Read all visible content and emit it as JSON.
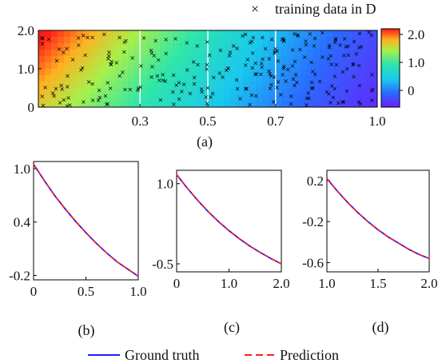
{
  "chart_data": [
    {
      "id": "a",
      "type": "heatmap",
      "caption": "(a)",
      "legend": "training data in D",
      "xlim": [
        0,
        1.0
      ],
      "ylim": [
        0,
        2.0
      ],
      "x_ticks": [
        "0.3",
        "0.5",
        "0.7",
        "1.0"
      ],
      "x_tick_values": [
        0.3,
        0.5,
        0.7,
        1.0
      ],
      "y_ticks": [
        "2.0",
        "1.0",
        "0"
      ],
      "y_tick_values": [
        2.0,
        1.0,
        0
      ],
      "slice_lines_x": [
        0.3,
        0.5,
        0.7
      ],
      "colorbar": {
        "min": -0.6,
        "max": 2.2,
        "ticks": [
          "2.0",
          "1.0",
          "0"
        ],
        "tick_values": [
          2.0,
          1.0,
          0
        ]
      },
      "scatter_points_count": 250
    },
    {
      "id": "b",
      "type": "line",
      "caption": "(b)",
      "xlim": [
        0,
        1.0
      ],
      "ylim": [
        -0.25,
        1.08
      ],
      "x_ticks": [
        "0",
        "0.5",
        "1.0"
      ],
      "x_tick_values": [
        0,
        0.5,
        1.0
      ],
      "y_ticks": [
        "1.0",
        "0.4",
        "-0.2"
      ],
      "y_tick_values": [
        1.0,
        0.4,
        -0.2
      ],
      "x": [
        0,
        0.1,
        0.2,
        0.3,
        0.4,
        0.5,
        0.6,
        0.7,
        0.8,
        0.9,
        1.0
      ],
      "series": [
        {
          "name": "Ground truth",
          "color": "#1f1fff",
          "style": "solid",
          "values": [
            1.05,
            0.87,
            0.7,
            0.55,
            0.41,
            0.28,
            0.16,
            0.05,
            -0.05,
            -0.13,
            -0.21
          ]
        },
        {
          "name": "Prediction",
          "color": "#ff1f1f",
          "style": "dashed",
          "values": [
            1.05,
            0.87,
            0.7,
            0.55,
            0.41,
            0.28,
            0.16,
            0.05,
            -0.05,
            -0.13,
            -0.21
          ]
        }
      ]
    },
    {
      "id": "c",
      "type": "line",
      "caption": "(c)",
      "xlim": [
        0,
        2.0
      ],
      "ylim": [
        -0.65,
        1.25
      ],
      "x_ticks": [
        "0",
        "1.0",
        "2.0"
      ],
      "x_tick_values": [
        0,
        1.0,
        2.0
      ],
      "y_ticks": [
        "1.0",
        "-0.5"
      ],
      "y_tick_values": [
        1.0,
        -0.5
      ],
      "x": [
        0,
        0.2,
        0.4,
        0.6,
        0.8,
        1.0,
        1.2,
        1.4,
        1.6,
        1.8,
        2.0
      ],
      "series": [
        {
          "name": "Ground truth",
          "color": "#1f1fff",
          "style": "solid",
          "values": [
            1.17,
            0.92,
            0.69,
            0.48,
            0.29,
            0.12,
            -0.03,
            -0.17,
            -0.29,
            -0.4,
            -0.5
          ]
        },
        {
          "name": "Prediction",
          "color": "#ff1f1f",
          "style": "dashed",
          "values": [
            1.17,
            0.92,
            0.69,
            0.48,
            0.29,
            0.12,
            -0.03,
            -0.17,
            -0.29,
            -0.4,
            -0.5
          ]
        }
      ]
    },
    {
      "id": "d",
      "type": "line",
      "caption": "(d)",
      "xlim": [
        1.0,
        2.0
      ],
      "ylim": [
        -0.69,
        0.3
      ],
      "x_ticks": [
        "1.0",
        "1.5",
        "2.0"
      ],
      "x_tick_values": [
        1.0,
        1.5,
        2.0
      ],
      "y_ticks": [
        "0.2",
        "-0.2",
        "-0.6"
      ],
      "y_tick_values": [
        0.2,
        -0.2,
        -0.6
      ],
      "x": [
        1.0,
        1.1,
        1.2,
        1.3,
        1.4,
        1.5,
        1.6,
        1.7,
        1.8,
        1.9,
        2.0
      ],
      "series": [
        {
          "name": "Ground truth",
          "color": "#1f1fff",
          "style": "solid",
          "values": [
            0.22,
            0.1,
            -0.01,
            -0.11,
            -0.2,
            -0.28,
            -0.35,
            -0.41,
            -0.47,
            -0.52,
            -0.56
          ]
        },
        {
          "name": "Prediction",
          "color": "#ff1f1f",
          "style": "dashed",
          "values": [
            0.22,
            0.1,
            -0.01,
            -0.11,
            -0.2,
            -0.28,
            -0.35,
            -0.41,
            -0.47,
            -0.52,
            -0.56
          ]
        }
      ]
    }
  ],
  "legend": {
    "ground_truth": "Ground truth",
    "prediction": "Prediction"
  }
}
